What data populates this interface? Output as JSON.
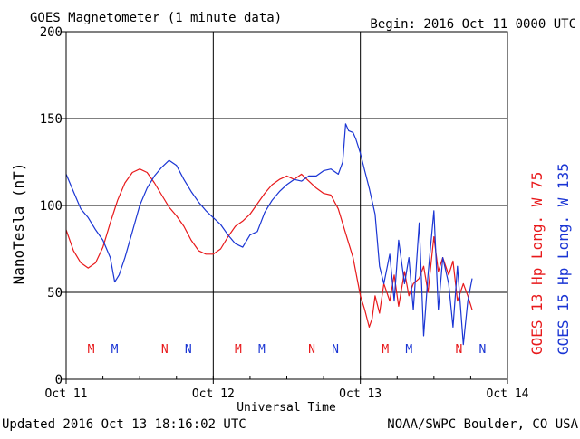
{
  "chart_data": {
    "type": "line",
    "title": "GOES Magnetometer (1 minute data)",
    "begin_label": "Begin:  2016 Oct 11 0000 UTC",
    "xlabel": "Universal Time",
    "ylabel": "NanoTesla (nT)",
    "footer_left": "Updated 2016 Oct 13 18:16:02 UTC",
    "footer_right": "NOAA/SWPC Boulder, CO USA",
    "xlim_days": [
      0,
      3
    ],
    "ylim": [
      0,
      200
    ],
    "x_ticks": [
      {
        "value": 0,
        "label": "Oct 11"
      },
      {
        "value": 1,
        "label": "Oct 12"
      },
      {
        "value": 2,
        "label": "Oct 13"
      },
      {
        "value": 3,
        "label": "Oct 14"
      }
    ],
    "y_ticks": [
      0,
      50,
      100,
      150,
      200
    ],
    "grid": true,
    "series": [
      {
        "name": "GOES 13 Hp  Long. W 75",
        "color": "#e8191b",
        "x_days": [
          0.0,
          0.05,
          0.1,
          0.15,
          0.2,
          0.25,
          0.3,
          0.35,
          0.4,
          0.45,
          0.5,
          0.55,
          0.6,
          0.65,
          0.7,
          0.75,
          0.8,
          0.85,
          0.9,
          0.95,
          1.0,
          1.05,
          1.1,
          1.15,
          1.2,
          1.25,
          1.3,
          1.35,
          1.4,
          1.45,
          1.5,
          1.55,
          1.6,
          1.65,
          1.7,
          1.75,
          1.8,
          1.85,
          1.9,
          1.95,
          2.0,
          2.03,
          2.06,
          2.08,
          2.1,
          2.13,
          2.16,
          2.2,
          2.23,
          2.26,
          2.3,
          2.33,
          2.36,
          2.4,
          2.43,
          2.46,
          2.5,
          2.53,
          2.56,
          2.6,
          2.63,
          2.66,
          2.7,
          2.73,
          2.76
        ],
        "y": [
          86,
          74,
          67,
          64,
          67,
          76,
          90,
          103,
          113,
          119,
          121,
          119,
          113,
          106,
          99,
          94,
          88,
          80,
          74,
          72,
          72,
          75,
          82,
          88,
          91,
          95,
          101,
          107,
          112,
          115,
          117,
          115,
          118,
          114,
          110,
          107,
          106,
          98,
          84,
          70,
          48,
          40,
          30,
          35,
          48,
          38,
          55,
          45,
          60,
          42,
          62,
          48,
          55,
          58,
          65,
          50,
          82,
          62,
          70,
          60,
          68,
          45,
          55,
          48,
          40
        ],
        "markers": [
          {
            "label": "M",
            "x_day": 0.17
          },
          {
            "label": "N",
            "x_day": 0.67
          },
          {
            "label": "M",
            "x_day": 1.17
          },
          {
            "label": "N",
            "x_day": 1.67
          },
          {
            "label": "M",
            "x_day": 2.17
          },
          {
            "label": "N",
            "x_day": 2.67
          }
        ]
      },
      {
        "name": "GOES 15 Hp  Long. W 135",
        "color": "#1a35d4",
        "x_days": [
          0.0,
          0.05,
          0.1,
          0.15,
          0.2,
          0.25,
          0.3,
          0.33,
          0.36,
          0.4,
          0.45,
          0.5,
          0.55,
          0.6,
          0.65,
          0.7,
          0.75,
          0.8,
          0.85,
          0.9,
          0.95,
          1.0,
          1.05,
          1.1,
          1.15,
          1.2,
          1.25,
          1.3,
          1.35,
          1.4,
          1.45,
          1.5,
          1.55,
          1.6,
          1.65,
          1.7,
          1.75,
          1.8,
          1.85,
          1.88,
          1.9,
          1.92,
          1.95,
          1.97,
          2.0,
          2.03,
          2.06,
          2.1,
          2.13,
          2.16,
          2.2,
          2.23,
          2.26,
          2.3,
          2.33,
          2.36,
          2.4,
          2.43,
          2.46,
          2.5,
          2.53,
          2.56,
          2.6,
          2.63,
          2.66,
          2.7,
          2.73,
          2.76
        ],
        "y": [
          118,
          108,
          98,
          93,
          86,
          80,
          70,
          56,
          60,
          70,
          85,
          100,
          110,
          117,
          122,
          126,
          123,
          115,
          108,
          102,
          97,
          93,
          89,
          83,
          78,
          76,
          83,
          85,
          96,
          103,
          108,
          112,
          115,
          114,
          117,
          117,
          120,
          121,
          118,
          125,
          147,
          143,
          142,
          138,
          130,
          120,
          110,
          95,
          65,
          55,
          72,
          45,
          80,
          55,
          70,
          40,
          90,
          25,
          60,
          97,
          40,
          70,
          55,
          30,
          65,
          20,
          45,
          58
        ],
        "markers": [
          {
            "label": "M",
            "x_day": 0.33
          },
          {
            "label": "N",
            "x_day": 0.83
          },
          {
            "label": "M",
            "x_day": 1.33
          },
          {
            "label": "N",
            "x_day": 1.83
          },
          {
            "label": "M",
            "x_day": 2.33
          },
          {
            "label": "N",
            "x_day": 2.83
          }
        ]
      }
    ]
  }
}
